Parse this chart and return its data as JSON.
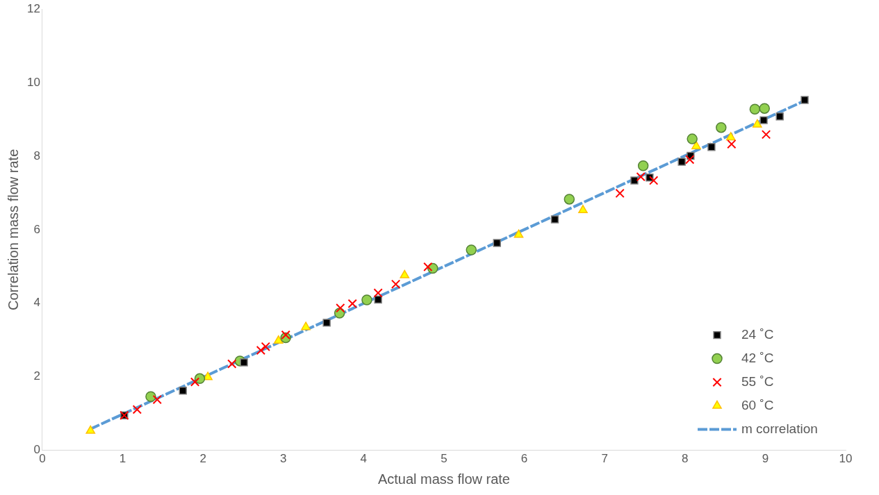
{
  "chart_data": {
    "type": "scatter",
    "xlabel": "Actual mass flow rate",
    "ylabel": "Correlation mass flow rate",
    "xlim": [
      0,
      10
    ],
    "xticks": [
      0,
      1,
      2,
      3,
      4,
      5,
      6,
      7,
      8,
      9,
      10
    ],
    "ylim": [
      0,
      12
    ],
    "yticks": [
      0,
      2,
      4,
      6,
      8,
      10,
      12
    ],
    "grid": false,
    "legend": "bottom right",
    "series": [
      {
        "name": "24 ˚C",
        "type": "scatter",
        "marker": "square",
        "color": "#000000",
        "x": [
          1.02,
          1.75,
          2.51,
          3.54,
          4.18,
          5.66,
          6.38,
          7.37,
          7.56,
          7.96,
          8.07,
          8.33,
          8.98,
          9.18,
          9.49
        ],
        "values": [
          0.95,
          1.62,
          2.39,
          3.47,
          4.1,
          5.64,
          6.28,
          7.34,
          7.42,
          7.85,
          8.01,
          8.25,
          8.98,
          9.08,
          9.53
        ]
      },
      {
        "name": "42 ˚C",
        "type": "scatter",
        "marker": "circle",
        "color": "#92d050",
        "x": [
          1.35,
          1.96,
          2.46,
          3.03,
          3.7,
          4.04,
          4.86,
          5.34,
          6.56,
          7.48,
          8.09,
          8.45,
          8.87,
          8.99
        ],
        "values": [
          1.46,
          1.95,
          2.43,
          3.06,
          3.73,
          4.09,
          4.95,
          5.45,
          6.83,
          7.74,
          8.47,
          8.78,
          9.28,
          9.3
        ]
      },
      {
        "name": "55 ˚C",
        "type": "scatter",
        "marker": "cross",
        "color": "#ff0000",
        "x": [
          1.02,
          1.18,
          1.43,
          1.9,
          2.36,
          2.72,
          2.78,
          3.03,
          3.71,
          3.86,
          4.18,
          4.4,
          4.8,
          7.19,
          7.45,
          7.61,
          8.06,
          8.58,
          9.01
        ],
        "values": [
          0.95,
          1.11,
          1.38,
          1.86,
          2.35,
          2.72,
          2.82,
          3.14,
          3.87,
          3.99,
          4.28,
          4.52,
          4.99,
          6.99,
          7.44,
          7.34,
          7.91,
          8.33,
          8.59
        ]
      },
      {
        "name": "60 ˚C",
        "type": "scatter",
        "marker": "triangle",
        "color": "#ffff00",
        "x": [
          0.6,
          2.06,
          2.94,
          3.28,
          4.51,
          5.93,
          6.73,
          8.14,
          8.57,
          8.9
        ],
        "values": [
          0.53,
          1.99,
          2.98,
          3.35,
          4.76,
          5.86,
          6.53,
          8.27,
          8.51,
          8.86
        ]
      },
      {
        "name": "m correlation",
        "type": "line",
        "marker": "none",
        "line_style": "dashed",
        "color": "#5b9bd5",
        "x": [
          0.6,
          9.5
        ],
        "values": [
          0.58,
          9.52
        ]
      }
    ]
  }
}
